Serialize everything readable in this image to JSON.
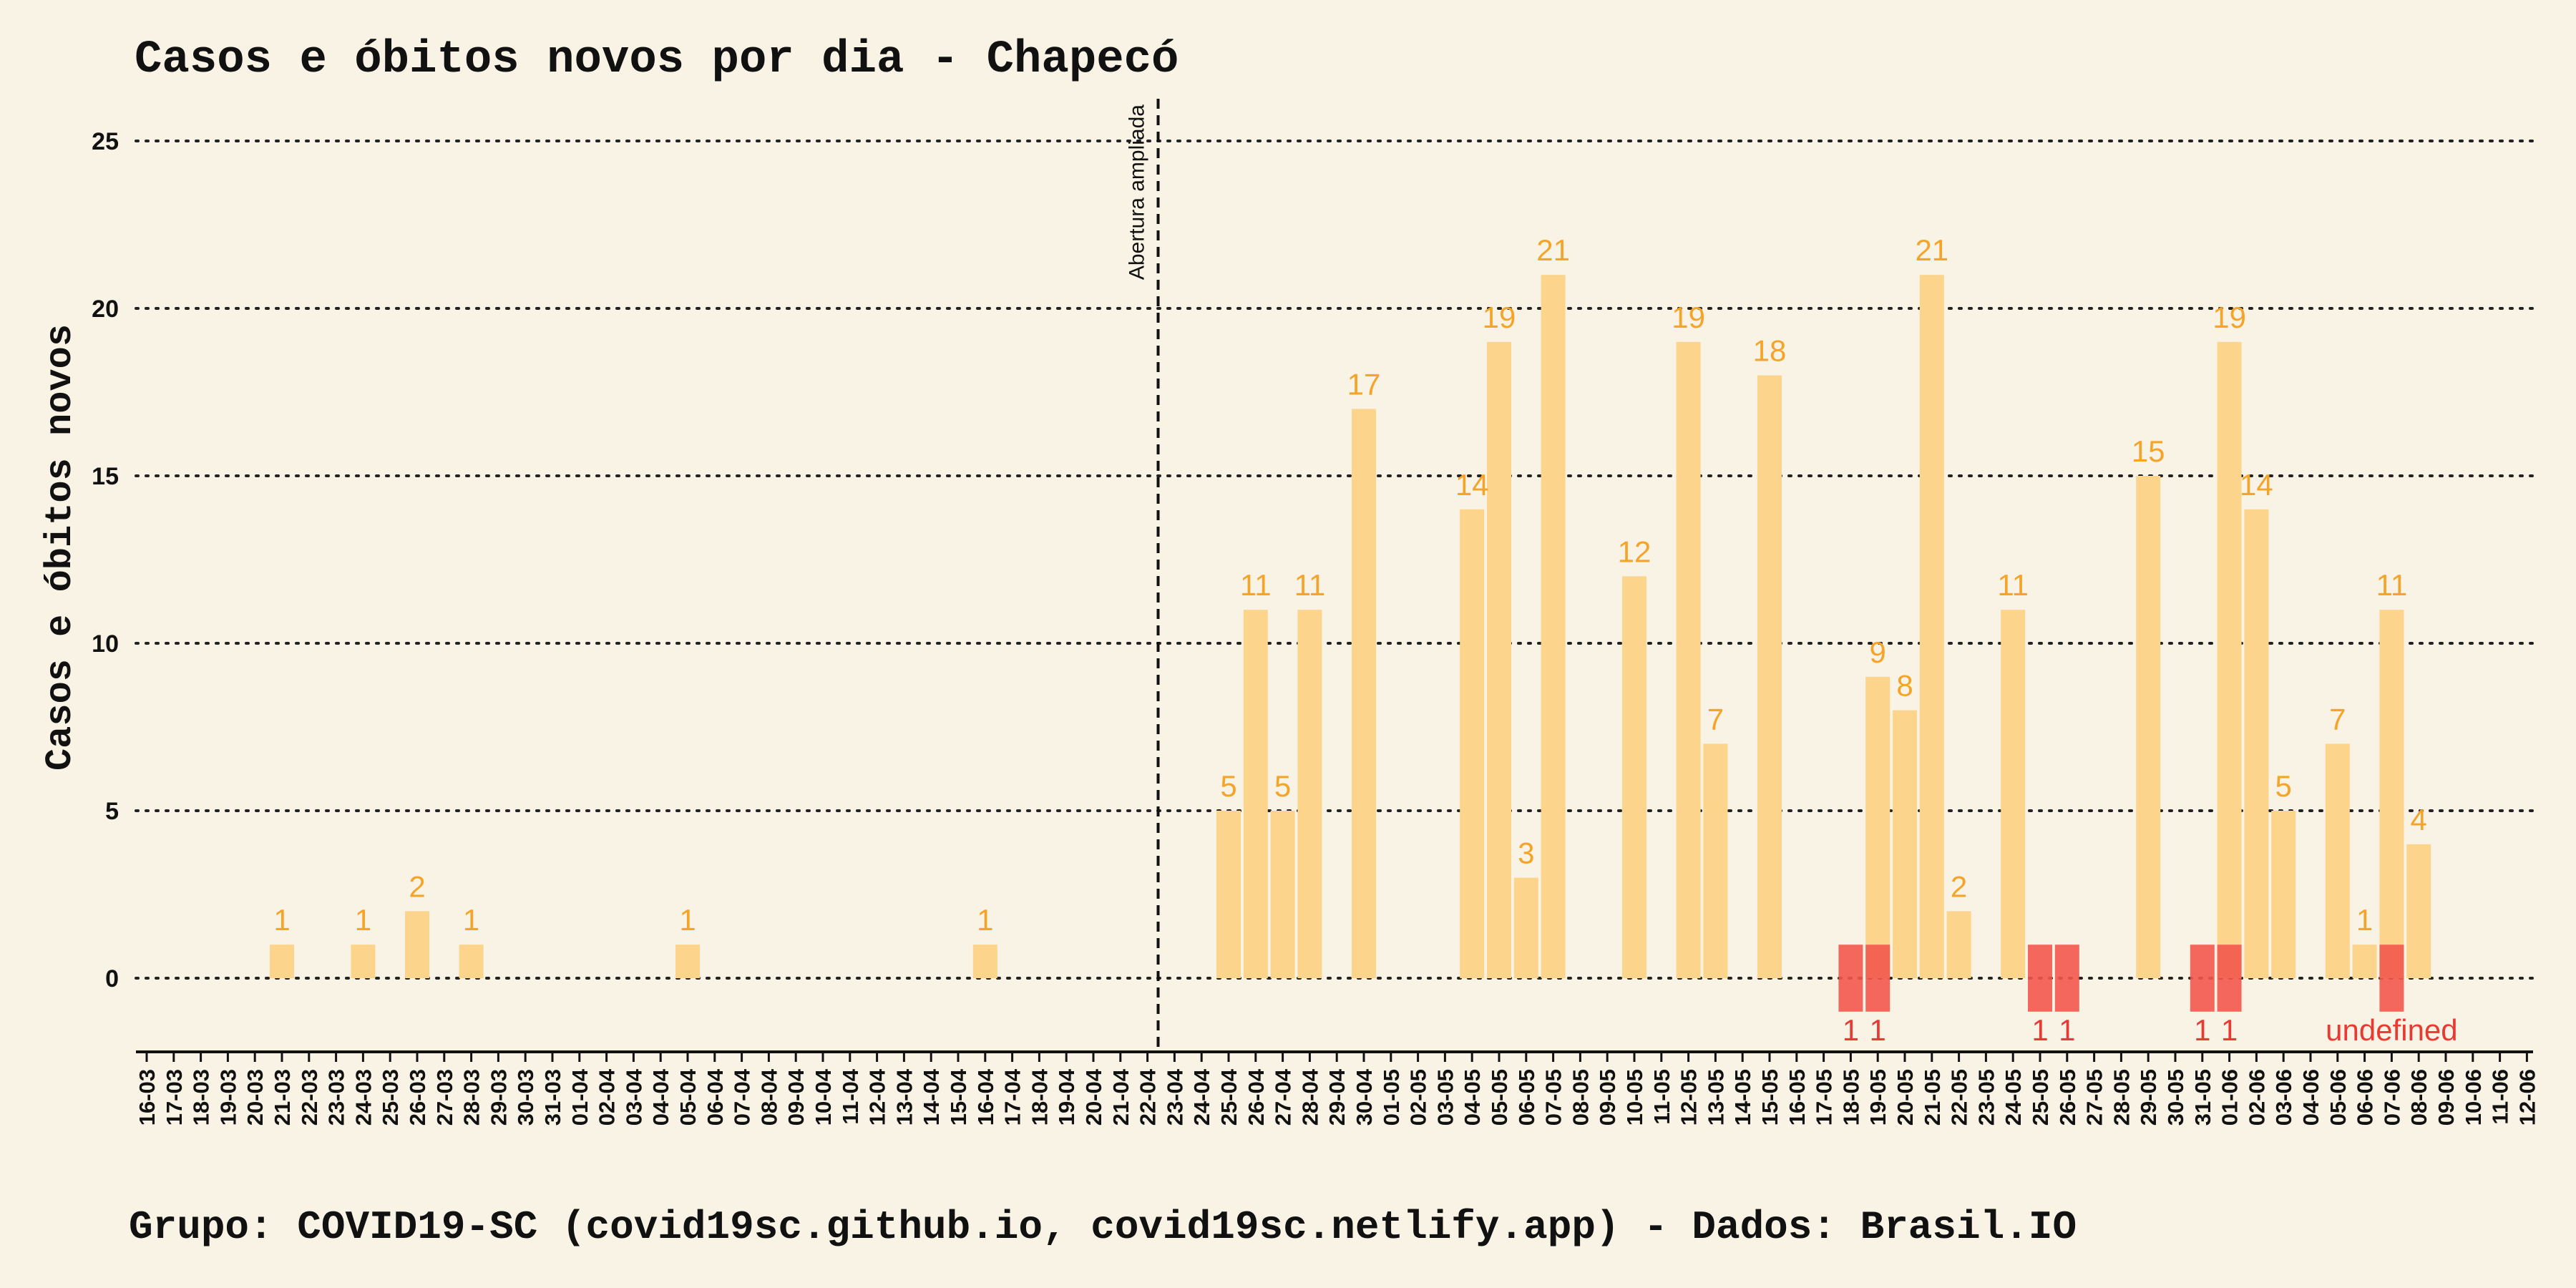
{
  "chart_data": {
    "type": "bar",
    "title": "Casos e óbitos novos por dia -  Chapecó",
    "ylabel": "Casos e óbitos novos",
    "xlabel": "",
    "footer": "Grupo: COVID19-SC (covid19sc.github.io, covid19sc.netlify.app)   -  Dados: Brasil.IO",
    "ylim": [
      -2,
      26
    ],
    "yticks": [
      0,
      5,
      10,
      15,
      20,
      25
    ],
    "grid": "horizontal-dotted",
    "categories": [
      "16-03",
      "17-03",
      "18-03",
      "19-03",
      "20-03",
      "21-03",
      "22-03",
      "23-03",
      "24-03",
      "25-03",
      "26-03",
      "27-03",
      "28-03",
      "29-03",
      "30-03",
      "31-03",
      "01-04",
      "02-04",
      "03-04",
      "04-04",
      "05-04",
      "06-04",
      "07-04",
      "08-04",
      "09-04",
      "10-04",
      "11-04",
      "12-04",
      "13-04",
      "14-04",
      "15-04",
      "16-04",
      "17-04",
      "18-04",
      "19-04",
      "20-04",
      "21-04",
      "22-04",
      "23-04",
      "24-04",
      "25-04",
      "26-04",
      "27-04",
      "28-04",
      "29-04",
      "30-04",
      "01-05",
      "02-05",
      "03-05",
      "04-05",
      "05-05",
      "06-05",
      "07-05",
      "08-05",
      "09-05",
      "10-05",
      "11-05",
      "12-05",
      "13-05",
      "14-05",
      "15-05",
      "16-05",
      "17-05",
      "18-05",
      "19-05",
      "20-05",
      "21-05",
      "22-05",
      "23-05",
      "24-05",
      "25-05",
      "26-05",
      "27-05",
      "28-05",
      "29-05",
      "30-05",
      "31-05",
      "01-06",
      "02-06",
      "03-06",
      "04-06",
      "05-06",
      "06-06",
      "07-06",
      "08-06",
      "09-06",
      "10-06",
      "11-06",
      "12-06"
    ],
    "xtick_labels": [
      "16-03",
      "17-03",
      "18-03",
      "19-03",
      "20-03",
      "21-03",
      "22-03",
      "23-03",
      "24-03",
      "25-03",
      "26-03",
      "27-03",
      "28-03",
      "29-03",
      "30-03",
      "31-03",
      "01-04",
      "02-04",
      "03-04",
      "04-04",
      "05-04",
      "06-04",
      "07-04",
      "08-04",
      "09-04",
      "10-04",
      "11-04",
      "12-04",
      "13-04",
      "14-04",
      "15-04",
      "16-04",
      "17-04",
      "18-04",
      "19-04",
      "20-04",
      "21-04",
      "22-04",
      "23-04",
      "24-04",
      "25-04",
      "26-04",
      "27-04",
      "28-04",
      "29-04",
      "30-04",
      "01-05",
      "02-05",
      "03-05",
      "04-05",
      "05-05",
      "06-05",
      "07-05",
      "08-05",
      "09-05",
      "10-05",
      "11-05",
      "12-05",
      "13-05",
      "14-05",
      "15-05",
      "16-05",
      "17-05",
      "18-05",
      "19-05",
      "20-05",
      "21-05",
      "22-05",
      "23-05",
      "24-05",
      "25-05",
      "26-05",
      "27-05",
      "28-05",
      "29-05",
      "30-05",
      "31-05",
      "01-06",
      "02-06",
      "03-06",
      "04-06",
      "05-06",
      "06-06",
      "07-06",
      "08-06",
      "09-06",
      "10-06",
      "11-06",
      "12-06"
    ],
    "series": [
      {
        "color": "#fcd48c",
        "label_color": "#f5a42a",
        "values": [
          0,
          0,
          0,
          0,
          0,
          1,
          0,
          0,
          1,
          0,
          2,
          0,
          1,
          0,
          0,
          0,
          0,
          0,
          0,
          0,
          1,
          0,
          0,
          0,
          0,
          0,
          0,
          0,
          0,
          0,
          0,
          1,
          0,
          0,
          0,
          0,
          0,
          0,
          0,
          0,
          5,
          11,
          5,
          11,
          0,
          17,
          0,
          0,
          0,
          14,
          19,
          3,
          21,
          0,
          0,
          12,
          0,
          19,
          7,
          0,
          18,
          0,
          0,
          0,
          9,
          8,
          21,
          2,
          0,
          11,
          0,
          0,
          0,
          0,
          15,
          0,
          0,
          19,
          14,
          5,
          0,
          7,
          1,
          11,
          4,
          0,
          0,
          0,
          0
        ]
      },
      {
        "color": "#f2584c",
        "label_color": "#e83a33",
        "values": [
          0,
          0,
          0,
          0,
          0,
          0,
          0,
          0,
          0,
          0,
          0,
          0,
          0,
          0,
          0,
          0,
          0,
          0,
          0,
          0,
          0,
          0,
          0,
          0,
          0,
          0,
          0,
          0,
          0,
          0,
          0,
          0,
          0,
          0,
          0,
          0,
          0,
          0,
          0,
          0,
          0,
          0,
          0,
          0,
          0,
          0,
          0,
          0,
          0,
          0,
          0,
          0,
          0,
          0,
          0,
          0,
          0,
          0,
          0,
          0,
          0,
          0,
          0,
          1,
          1,
          0,
          0,
          0,
          0,
          0,
          1,
          1,
          0,
          0,
          0,
          0,
          1,
          1,
          0,
          0,
          0,
          0,
          0,
          1,
          0,
          0,
          0,
          0,
          0
        ]
      }
    ],
    "death_label_values": [
      1,
      1,
      1,
      1,
      1,
      1
    ],
    "annotations": [
      {
        "text": "Abertura ampliada",
        "x": "22-04"
      }
    ],
    "colors": {
      "background": "#f9f3e5",
      "cases": "#fcd48c",
      "deaths": "#f2584c",
      "case_label": "#f5a42a",
      "death_label": "#e83a33"
    }
  }
}
